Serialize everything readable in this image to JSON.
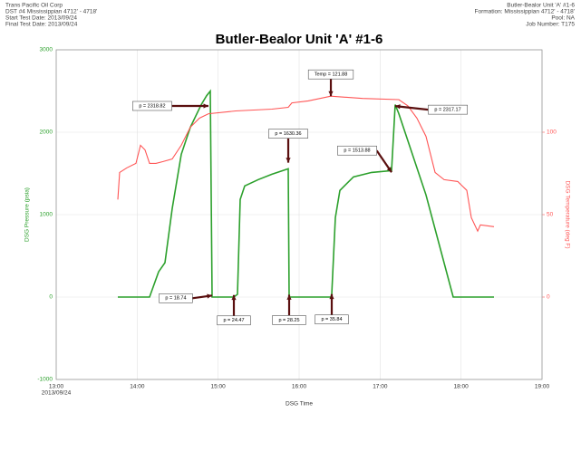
{
  "header": {
    "left": [
      "Trans Pacific Oil Corp",
      "DST #4 Mississippian 4712' - 4718'",
      "Start Test Date: 2013/09/24",
      "Final Test Date: 2013/09/24"
    ],
    "right": [
      "Butler-Bealor Unit 'A' #1-6",
      "Formation: Mississippian 4712' - 4718'",
      "Pool: NA",
      "Job Number: T175"
    ]
  },
  "chart_data": {
    "type": "line",
    "title": "Butler-Bealor Unit 'A' #1-6",
    "xlabel": "DSG Time",
    "ylabel": "DSG Pressure (psia)",
    "y2label": "DSG Temperature (deg F)",
    "xlim": [
      13,
      19
    ],
    "xticks": [
      {
        "value": 13,
        "label": "13:00"
      },
      {
        "value": 14,
        "label": "14:00"
      },
      {
        "value": 15,
        "label": "15:00"
      },
      {
        "value": 16,
        "label": "16:00"
      },
      {
        "value": 17,
        "label": "17:00"
      },
      {
        "value": 18,
        "label": "18:00"
      },
      {
        "value": 19,
        "label": "19:00"
      }
    ],
    "x_date": "2013/09/24",
    "ylim": [
      -1000,
      3000
    ],
    "yticks": [
      -1000,
      0,
      1000,
      2000,
      3000
    ],
    "y2lim": [
      -50,
      150
    ],
    "y2ticks": [
      0,
      50,
      100
    ],
    "grid": true,
    "series": [
      {
        "color": "#2ca02c",
        "axis": "y",
        "x": [
          13.761,
          14.153,
          14.265,
          14.343,
          14.433,
          14.545,
          14.657,
          14.791,
          14.858,
          14.903,
          14.925,
          14.948,
          15.194,
          15.239,
          15.272,
          15.328,
          15.496,
          15.664,
          15.866,
          15.877,
          16.392,
          16.403,
          16.448,
          16.504,
          16.672,
          16.896,
          17.142,
          17.187,
          17.231,
          17.567,
          17.903,
          18.407
        ],
        "values": [
          0,
          0,
          307,
          416,
          1074,
          1732,
          2060,
          2334,
          2444,
          2499,
          0,
          0,
          0,
          33,
          1184,
          1348,
          1425,
          1490,
          1556,
          0,
          0,
          33,
          964,
          1293,
          1458,
          1512,
          1534,
          2334,
          2225,
          1238,
          0,
          0
        ]
      },
      {
        "color": "#ff5555",
        "axis": "y2",
        "x": [
          13.761,
          13.784,
          13.873,
          13.985,
          14.041,
          14.097,
          14.153,
          14.231,
          14.321,
          14.433,
          14.545,
          14.657,
          14.769,
          14.881,
          15.217,
          15.664,
          15.866,
          15.911,
          16.112,
          16.392,
          16.784,
          17.231,
          17.343,
          17.455,
          17.567,
          17.679,
          17.791,
          17.959,
          18.071,
          18.127,
          18.205,
          18.239,
          18.407
        ],
        "values": [
          59.2,
          75.6,
          78.4,
          81.1,
          92.1,
          89.3,
          81.1,
          81.1,
          82.2,
          83.8,
          92.1,
          103.0,
          108.5,
          111.2,
          112.9,
          114.0,
          115.1,
          117.8,
          119.0,
          121.88,
          120.5,
          119.8,
          116.0,
          108.5,
          97.5,
          75.6,
          71.2,
          70.1,
          64.7,
          48.2,
          40.0,
          43.8,
          42.7
        ]
      }
    ],
    "annotations": [
      {
        "label": "p = 2318.82",
        "x": 14.88,
        "value": 2318.82,
        "axis": "y"
      },
      {
        "label": "p = 18.74",
        "x": 14.925,
        "value": 18.74,
        "axis": "y"
      },
      {
        "label": "p = 24.47",
        "x": 15.194,
        "value": 24.47,
        "axis": "y"
      },
      {
        "label": "p = 1630.36",
        "x": 15.866,
        "value": 1630.36,
        "axis": "y"
      },
      {
        "label": "p = 28.25",
        "x": 15.877,
        "value": 28.25,
        "axis": "y"
      },
      {
        "label": "p = 35.84",
        "x": 16.403,
        "value": 35.84,
        "axis": "y"
      },
      {
        "label": "p = 1513.88",
        "x": 17.142,
        "value": 1513.88,
        "axis": "y"
      },
      {
        "label": "p = 2317.17",
        "x": 17.187,
        "value": 2317.17,
        "axis": "y"
      },
      {
        "label": "Temp = 121.88",
        "x": 16.392,
        "value": 121.88,
        "axis": "y2"
      }
    ]
  }
}
